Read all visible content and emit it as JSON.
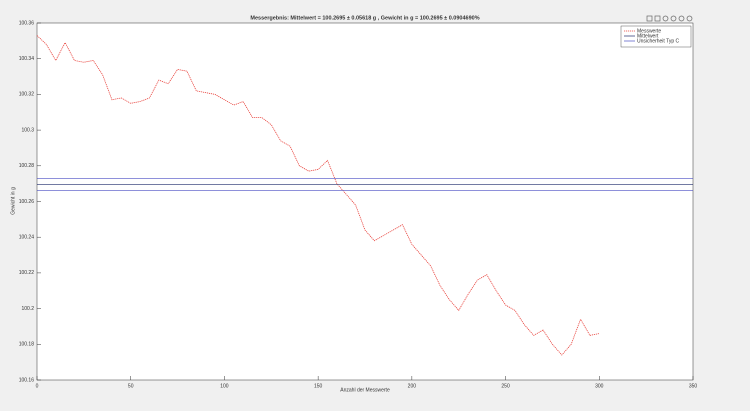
{
  "chart_data": {
    "type": "line",
    "title": "Messergebnis: Mittelwert = 100.2695 ± 0.05618 g , Gewicht in g = 100.2695 ± 0.0904690%",
    "xlabel": "Anzahl der Messwerte",
    "ylabel": "Gewicht in g",
    "xlim": [
      0,
      350
    ],
    "xticks": [
      0,
      50,
      100,
      150,
      200,
      250,
      300,
      350
    ],
    "ylim": [
      100.16,
      100.36
    ],
    "yticks": [
      100.16,
      100.18,
      100.2,
      100.22,
      100.24,
      100.26,
      100.28,
      100.3,
      100.32,
      100.34,
      100.36
    ],
    "legend": "top-right",
    "series": [
      {
        "name": "Messwerte",
        "color": "#e8403a",
        "dash": true,
        "x": [
          0,
          5,
          10,
          15,
          20,
          25,
          30,
          35,
          40,
          45,
          50,
          55,
          60,
          65,
          70,
          75,
          80,
          85,
          90,
          95,
          100,
          105,
          110,
          115,
          120,
          125,
          130,
          135,
          140,
          145,
          150,
          155,
          160,
          165,
          170,
          175,
          180,
          185,
          190,
          195,
          200,
          205,
          210,
          215,
          220,
          225,
          230,
          235,
          240,
          245,
          250,
          255,
          260,
          265,
          270,
          275,
          280,
          285,
          290,
          295,
          300
        ],
        "values": [
          100.353,
          100.348,
          100.339,
          100.349,
          100.339,
          100.338,
          100.339,
          100.331,
          100.317,
          100.318,
          100.315,
          100.316,
          100.318,
          100.328,
          100.326,
          100.334,
          100.333,
          100.322,
          100.321,
          100.32,
          100.317,
          100.314,
          100.316,
          100.307,
          100.307,
          100.303,
          100.294,
          100.291,
          100.28,
          100.277,
          100.278,
          100.283,
          100.27,
          100.264,
          100.258,
          100.244,
          100.238,
          100.241,
          100.244,
          100.247,
          100.236,
          100.23,
          100.224,
          100.213,
          100.205,
          100.199,
          100.208,
          100.216,
          100.219,
          100.21,
          100.202,
          100.199,
          100.191,
          100.185,
          100.188,
          100.18,
          100.174,
          100.18,
          100.194,
          100.185,
          100.186
        ]
      },
      {
        "name": "Mittelwert",
        "color": "#1f2a6b",
        "x": [
          0,
          350
        ],
        "values": [
          100.2695,
          100.2695
        ]
      },
      {
        "name": "Unsicherheit Typ C",
        "color": "#4a4fc4",
        "x": [
          0,
          350
        ],
        "values": [
          100.2729,
          100.2729
        ]
      },
      {
        "name": "Unsicherheit Typ C",
        "color": "#4a4fc4",
        "x": [
          0,
          350
        ],
        "values": [
          100.2661,
          100.2661
        ]
      }
    ]
  }
}
